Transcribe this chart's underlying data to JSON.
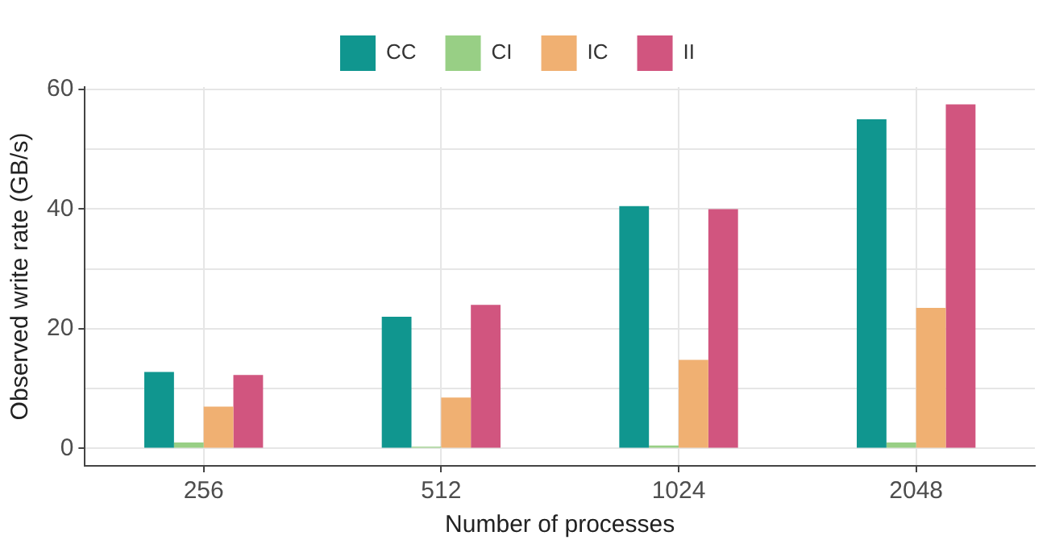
{
  "chart_data": {
    "type": "bar",
    "xlabel": "Number of processes",
    "ylabel": "Observed write rate (GB/s)",
    "categories": [
      "256",
      "512",
      "1024",
      "2048"
    ],
    "series": [
      {
        "name": "CC",
        "color": "#10968f",
        "values": [
          12.8,
          22,
          40.5,
          55
        ]
      },
      {
        "name": "CI",
        "color": "#98cf85",
        "values": [
          1,
          0.3,
          0.5,
          1
        ]
      },
      {
        "name": "IC",
        "color": "#f0b072",
        "values": [
          7,
          8.5,
          14.8,
          23.5
        ]
      },
      {
        "name": "II",
        "color": "#d1557f",
        "values": [
          12.3,
          24,
          40,
          57.5
        ]
      }
    ],
    "ylim": [
      -2.9,
      60.4
    ],
    "yticks": [
      0,
      {
        "value": 10,
        "label": null
      },
      20,
      {
        "value": 30,
        "label": null
      },
      40,
      {
        "value": 50,
        "label": null
      },
      60
    ],
    "grid": true,
    "legend": "top"
  }
}
